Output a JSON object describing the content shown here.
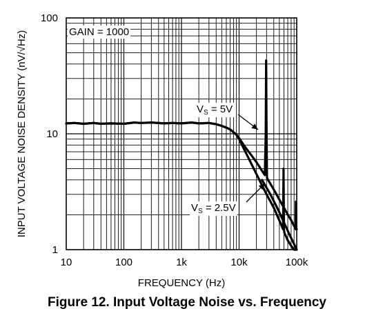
{
  "chart_data": {
    "type": "line",
    "title": "",
    "xlabel": "FREQUENCY (Hz)",
    "ylabel": "INPUT VOLTAGE NOISE DENSITY (nV/√Hz)",
    "x_scale": "log",
    "y_scale": "log",
    "xlim": [
      10,
      100000
    ],
    "ylim": [
      1,
      100
    ],
    "grid": true,
    "x_ticks": [
      "10",
      "100",
      "1k",
      "10k",
      "100k"
    ],
    "y_ticks": [
      "1",
      "10",
      "100"
    ],
    "annotations": {
      "gain": "GAIN = 1000",
      "vs_5v_prefix": "V",
      "vs_5v_sub": "S",
      "vs_5v_value": " = 5V",
      "vs_25v_prefix": "V",
      "vs_25v_sub": "S",
      "vs_25v_value": " = 2.5V"
    },
    "series": [
      {
        "label": "VS = 5V",
        "x": [
          10,
          14,
          20,
          30,
          40,
          60,
          100,
          150,
          200,
          300,
          500,
          700,
          1000,
          1500,
          2000,
          3000,
          4000,
          5000,
          6000,
          7000,
          8000,
          9000,
          10000,
          12000,
          15000,
          20000,
          25000,
          28000,
          29000,
          29500,
          30000,
          30500,
          31000,
          40000,
          50000,
          60000,
          70000,
          80000,
          90000,
          96000,
          97000,
          98000,
          100000
        ],
        "y": [
          12.3,
          12.4,
          12.2,
          12.4,
          12.2,
          12.3,
          12.2,
          12.5,
          12.4,
          12.5,
          12.3,
          12.4,
          12.3,
          12.5,
          12.3,
          12.4,
          12.1,
          11.7,
          11.3,
          10.9,
          10.3,
          9.8,
          9.2,
          8.0,
          6.9,
          5.7,
          4.8,
          4.4,
          10,
          43,
          10,
          4.2,
          4.1,
          3.3,
          2.7,
          2.3,
          2.0,
          1.8,
          1.6,
          1.5,
          2.6,
          1.5,
          1.5
        ]
      },
      {
        "label": "VS = 2.5V",
        "x": [
          10,
          14,
          20,
          30,
          40,
          60,
          100,
          150,
          200,
          300,
          500,
          700,
          1000,
          1500,
          2000,
          3000,
          4000,
          5000,
          6000,
          7000,
          8000,
          9000,
          10000,
          12000,
          15000,
          20000,
          25000,
          30000,
          40000,
          55000,
          58000,
          59000,
          60000,
          61000,
          70000,
          80000,
          90000,
          100000
        ],
        "y": [
          12.3,
          12.4,
          12.2,
          12.4,
          12.2,
          12.3,
          12.2,
          12.5,
          12.4,
          12.5,
          12.3,
          12.4,
          12.3,
          12.5,
          12.3,
          12.4,
          12.1,
          11.7,
          11.3,
          10.9,
          10.3,
          9.8,
          9.0,
          7.5,
          6.0,
          4.5,
          3.6,
          3.0,
          2.3,
          1.6,
          1.5,
          5,
          1.5,
          1.4,
          1.2,
          1.08,
          1.0,
          0.95
        ]
      },
      {
        "label": "",
        "x": [
          25000,
          35000,
          50000,
          70000,
          100000
        ],
        "y": [
          4.0,
          3.0,
          2.1,
          1.45,
          1.0
        ]
      }
    ]
  },
  "caption": "Figure 12. Input Voltage Noise vs. Frequency"
}
